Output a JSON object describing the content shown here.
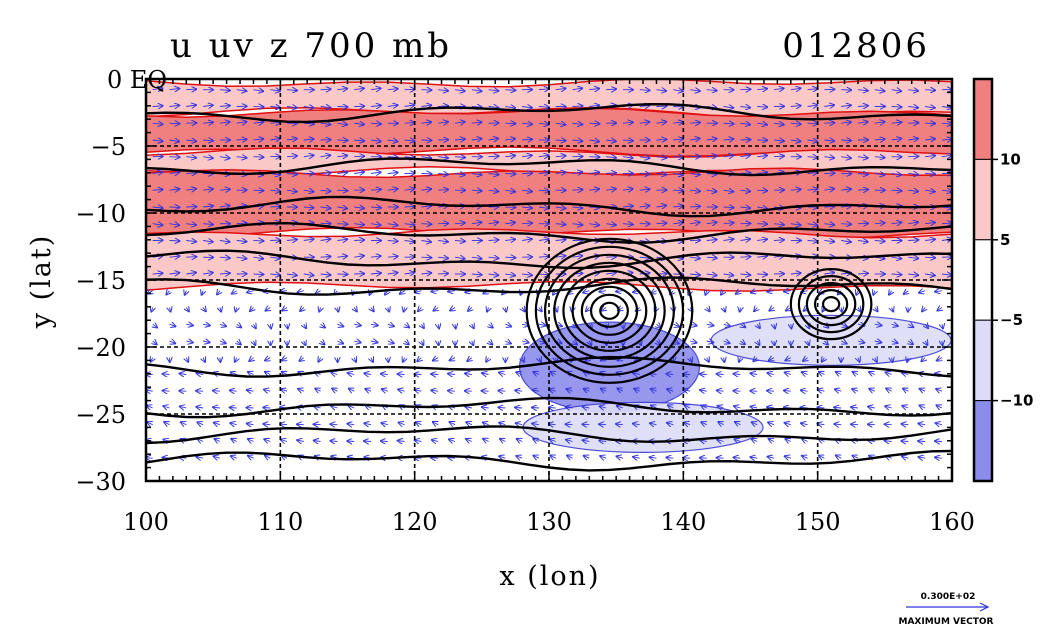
{
  "chart_data": {
    "type": "heatmap",
    "title": "u uv z 700 mb",
    "date_label": "012806",
    "xlabel": "x (lon)",
    "ylabel": "y (lat)",
    "xlim": [
      100,
      160
    ],
    "ylim": [
      -30,
      0
    ],
    "x_ticks": [
      100,
      110,
      120,
      130,
      140,
      150,
      160
    ],
    "y_ticks": [
      0,
      -5,
      -10,
      -15,
      -20,
      -25,
      -30
    ],
    "x_tick_labels": [
      "100",
      "110",
      "120",
      "130",
      "140",
      "150",
      "160"
    ],
    "y_tick_labels": [
      "0",
      "−5",
      "−10",
      "−15",
      "−20",
      "−25",
      "−30"
    ],
    "y_top_label": "0 EQ",
    "grid": true,
    "colorbar": {
      "levels": [
        10,
        5,
        -5,
        -10
      ],
      "labels": [
        "10",
        "5",
        "−5",
        "−10"
      ],
      "colors": [
        "#f08080",
        "#fbc8c8",
        "#ffffff",
        "#dcdcf8",
        "#8c8cec"
      ]
    },
    "u_bands": [
      {
        "lat_from": -0.3,
        "lat_to": -2.5,
        "value": 7
      },
      {
        "lat_from": -2.5,
        "lat_to": -5.5,
        "value": 12
      },
      {
        "lat_from": -5.5,
        "lat_to": -7.0,
        "value": 8
      },
      {
        "lat_from": -7.0,
        "lat_to": -11.5,
        "value": 12
      },
      {
        "lat_from": -11.5,
        "lat_to": -15.5,
        "value": 7
      }
    ],
    "easterly_regions": [
      {
        "lon": 134.5,
        "lat": -21.5,
        "value": -10
      },
      {
        "lon": 137.0,
        "lat": -26.0,
        "value": -7
      },
      {
        "lon": 151.0,
        "lat": -19.5,
        "value": -6
      }
    ],
    "height_contour_lows": [
      {
        "lon": 134.5,
        "lat": -17.3
      },
      {
        "lon": 151.0,
        "lat": -16.8
      }
    ],
    "max_vector": {
      "value": "0.300E+02",
      "label": "MAXIMUM VECTOR"
    }
  }
}
